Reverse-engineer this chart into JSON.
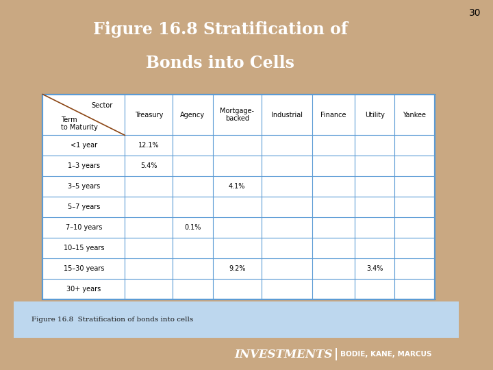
{
  "title_line1": "Figure 16.8 Stratification of",
  "title_line2": "Bonds into Cells",
  "page_number": "30",
  "caption": "Figure 16.8  Stratification of bonds into cells",
  "footer_left": "INVESTMENTS",
  "footer_right": "BODIE, KANE, MARCUS",
  "bg_color": "#c9a882",
  "title_bg": "#09165a",
  "title_color": "#ffffff",
  "footer_bg": "#09165a",
  "footer_color": "#ffffff",
  "table_border_color": "#5b9bd5",
  "table_outer_border": "#2e75b6",
  "col_headers": [
    "Treasury",
    "Agency",
    "Mortgage-\nbacked",
    "Industrial",
    "Finance",
    "Utility",
    "Yankee"
  ],
  "row_headers": [
    "<1 year",
    "1–3 years",
    "3–5 years",
    "5–7 years",
    "7–10 years",
    "10–15 years",
    "15–30 years",
    "30+ years"
  ],
  "corner_top": "Sector",
  "corner_bottom": "Term\nto Maturity",
  "cell_values": {
    "0,0": "12.1%",
    "1,0": "5.4%",
    "2,2": "4.1%",
    "4,1": "0.1%",
    "6,2": "9.2%",
    "6,5": "3.4%"
  },
  "white_fill": "#ffffff",
  "card_bg": "#deeaf1",
  "caption_bg": "#bdd7ee",
  "diag_color": "#8B4513"
}
